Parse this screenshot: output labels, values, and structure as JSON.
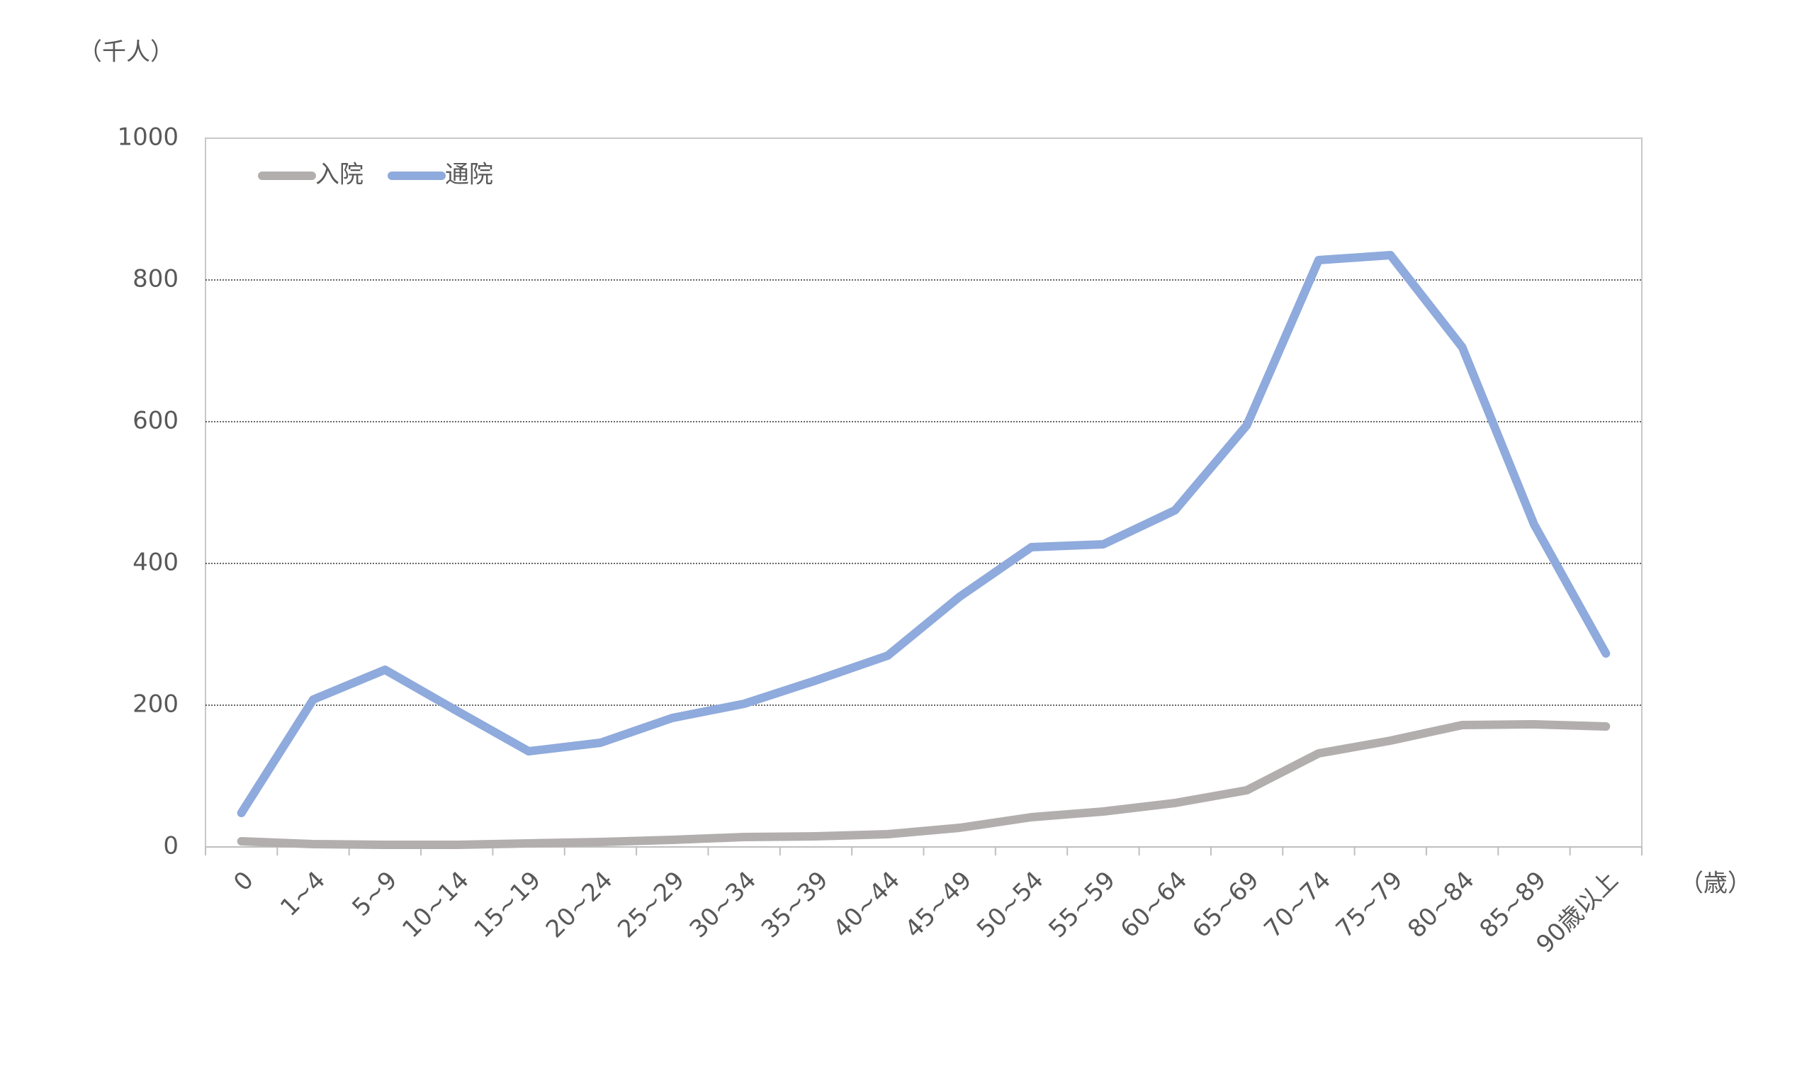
{
  "chart_data": {
    "type": "line",
    "y_unit_label": "（千人）",
    "x_unit_label": "（歳）",
    "categories": [
      "0",
      "1~4",
      "5~9",
      "10~14",
      "15~19",
      "20~24",
      "25~29",
      "30~34",
      "35~39",
      "40~44",
      "45~49",
      "50~54",
      "55~59",
      "60~64",
      "65~69",
      "70~74",
      "75~79",
      "80~84",
      "85~89",
      "90歳以上"
    ],
    "series": [
      {
        "name": "入院",
        "color": "#b3aeae",
        "values": [
          8,
          4,
          3,
          3,
          5,
          7,
          10,
          14,
          15,
          18,
          27,
          42,
          50,
          62,
          80,
          132,
          150,
          172,
          173,
          170
        ]
      },
      {
        "name": "通院",
        "color": "#8faadc",
        "values": [
          48,
          208,
          250,
          192,
          135,
          147,
          182,
          202,
          235,
          270,
          353,
          423,
          427,
          475,
          595,
          828,
          835,
          705,
          455,
          273
        ]
      }
    ],
    "ylim": [
      0,
      1000
    ],
    "yticks": [
      0,
      200,
      400,
      600,
      800,
      1000
    ],
    "grid": true,
    "legend": "upper left"
  }
}
